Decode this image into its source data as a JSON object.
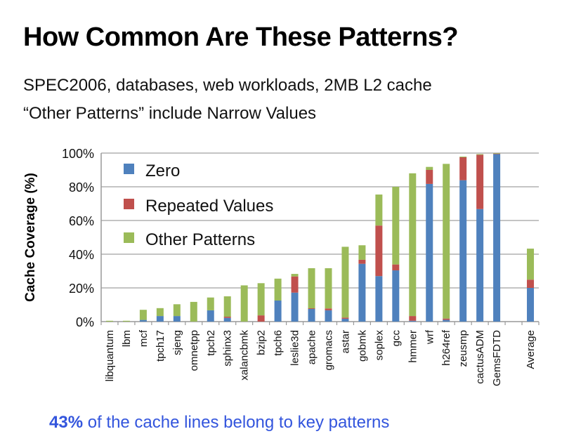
{
  "slide": {
    "title": "How Common Are These Patterns?",
    "subtitle_line1": "SPEC2006, databases, web workloads, 2MB L2 cache",
    "subtitle_line2": "“Other Patterns” include Narrow Values",
    "conclusion_highlight": "43%",
    "conclusion_rest": " of the cache lines belong to key patterns",
    "accent_color": "#3355dd"
  },
  "chart_data": {
    "type": "bar",
    "stacked": true,
    "title": "",
    "xlabel": "",
    "ylabel": "Cache Coverage (%)",
    "ylim": [
      0,
      100
    ],
    "yticks": [
      "0%",
      "20%",
      "40%",
      "60%",
      "80%",
      "100%"
    ],
    "grid": true,
    "legend_position": "upper-left-inside",
    "categories": [
      "libquantum",
      "lbm",
      "mcf",
      "tpch17",
      "sjeng",
      "omnetpp",
      "tpch2",
      "sphinx3",
      "xalancbmk",
      "bzip2",
      "tpch6",
      "leslie3d",
      "apache",
      "gromacs",
      "astar",
      "gobmk",
      "soplex",
      "gcc",
      "hmmer",
      "wrf",
      "h264ref",
      "zeusmp",
      "cactusADM",
      "GemsFDTD",
      "",
      "Average"
    ],
    "series": [
      {
        "name": "Zero",
        "color": "#4f81bd",
        "values": [
          0,
          0,
          1,
          3.3,
          3.3,
          0,
          6.7,
          2.2,
          0,
          0,
          12.5,
          17.2,
          7.5,
          6.7,
          1.7,
          34.3,
          27,
          30.4,
          0.5,
          81.7,
          1,
          83.9,
          66.8,
          99.4,
          null,
          20
        ]
      },
      {
        "name": "Repeated Values",
        "color": "#c0504d",
        "values": [
          0,
          0,
          0,
          0,
          0,
          0,
          0,
          0.7,
          0,
          3.7,
          0,
          9.6,
          0.4,
          1.1,
          0.7,
          2.4,
          30,
          3.5,
          2.8,
          8.3,
          0.8,
          13.6,
          32.2,
          0.3,
          null,
          4.9
        ]
      },
      {
        "name": "Other Patterns",
        "color": "#9bbb59",
        "values": [
          0.5,
          0.5,
          6,
          4.7,
          7,
          11.7,
          7.6,
          12.1,
          21.5,
          19.1,
          13,
          1.5,
          23.8,
          23.9,
          42,
          8.6,
          18.4,
          46.1,
          84.7,
          1.8,
          91.8,
          0.4,
          0.4,
          0.3,
          null,
          18.4
        ]
      }
    ],
    "totals": [
      0.5,
      0.5,
      7,
      8,
      10.3,
      11.7,
      14.3,
      15,
      21.5,
      22.8,
      25.5,
      28.3,
      31.7,
      31.7,
      44.4,
      45.3,
      75.4,
      80,
      88,
      91.8,
      93.6,
      97.9,
      99.4,
      100,
      null,
      43.3
    ]
  }
}
